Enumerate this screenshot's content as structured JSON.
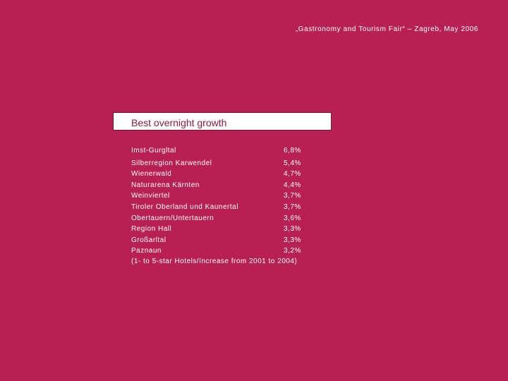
{
  "header": {
    "text": "„Gastronomy and Tourism Fair“ – Zagreb, May 2006"
  },
  "title": "Best overnight growth",
  "rows": [
    {
      "name": "Imst-Gurgltal",
      "value": "6,8%"
    },
    {
      "name": "Silberregion Karwendel",
      "value": "5,4%"
    },
    {
      "name": "Wienerwald",
      "value": "4,7%"
    },
    {
      "name": "Naturarena Kärnten",
      "value": "4,4%"
    },
    {
      "name": "Weinviertel",
      "value": "3,7%"
    },
    {
      "name": "Tiroler Oberland und Kaunertal",
      "value": "3,7%"
    },
    {
      "name": "Obertauern/Untertauern",
      "value": "3,6%"
    },
    {
      "name": "Region Hall",
      "value": "3,3%"
    },
    {
      "name": "Großarltal",
      "value": "3,3%"
    },
    {
      "name": "Paznaun",
      "value": "3,2%"
    }
  ],
  "footnote": "(1- to 5-star Hotels/Increase from 2001 to 2004)",
  "colors": {
    "background": "#b82053",
    "title_text": "#8b1a44",
    "box": "#ffffff"
  }
}
